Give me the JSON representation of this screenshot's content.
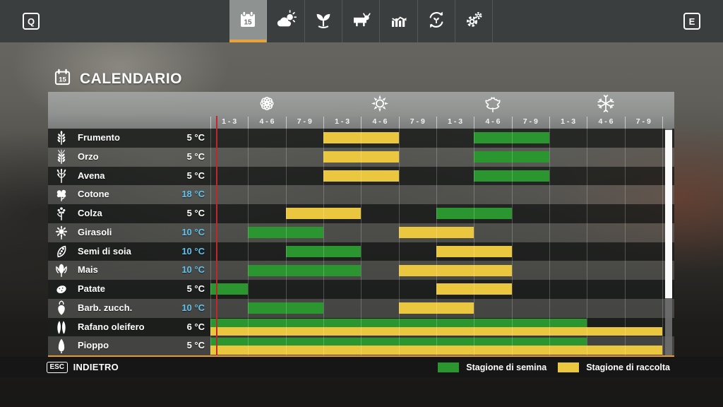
{
  "topbar": {
    "left_key": "Q",
    "right_key": "E",
    "tabs": [
      {
        "name": "calendar-tab",
        "icon": "calendar-icon",
        "active": true
      },
      {
        "name": "weather-tab",
        "icon": "weather-icon",
        "active": false
      },
      {
        "name": "crops-tab",
        "icon": "sprout-icon",
        "active": false
      },
      {
        "name": "animals-tab",
        "icon": "cow-icon",
        "active": false
      },
      {
        "name": "statistics-tab",
        "icon": "chart-icon",
        "active": false
      },
      {
        "name": "rotation-tab",
        "icon": "rotation-icon",
        "active": false
      },
      {
        "name": "settings-tab",
        "icon": "gears-icon",
        "active": false
      }
    ]
  },
  "page": {
    "title": "CALENDARIO",
    "title_icon": "calendar-outline-icon"
  },
  "calendar": {
    "seasons": [
      {
        "name": "spring",
        "icon": "flower-icon"
      },
      {
        "name": "summer",
        "icon": "sun-icon"
      },
      {
        "name": "autumn",
        "icon": "leaf-icon"
      },
      {
        "name": "winter",
        "icon": "snowflake-icon"
      }
    ],
    "period_labels": [
      "1 - 3",
      "4 - 6",
      "7 - 9",
      "1 - 3",
      "4 - 6",
      "7 - 9",
      "1 - 3",
      "4 - 6",
      "7 - 9",
      "1 - 3",
      "4 - 6",
      "7 - 9"
    ],
    "rows": [
      {
        "crop": "Frumento",
        "temp": "5 °C",
        "temp_highlight": false,
        "icon": "wheat-icon",
        "sow": [
          8,
          9
        ],
        "harvest": [
          4,
          5
        ],
        "layout": "normal"
      },
      {
        "crop": "Orzo",
        "temp": "5 °C",
        "temp_highlight": false,
        "icon": "barley-icon",
        "sow": [
          8,
          9
        ],
        "harvest": [
          4,
          5
        ],
        "layout": "normal"
      },
      {
        "crop": "Avena",
        "temp": "5 °C",
        "temp_highlight": false,
        "icon": "oat-icon",
        "sow": [
          8,
          9
        ],
        "harvest": [
          4,
          5
        ],
        "layout": "normal"
      },
      {
        "crop": "Cotone",
        "temp": "18 °C",
        "temp_highlight": true,
        "icon": "cotton-icon",
        "sow": null,
        "harvest": null,
        "layout": "normal"
      },
      {
        "crop": "Colza",
        "temp": "5 °C",
        "temp_highlight": false,
        "icon": "canola-icon",
        "sow": [
          7,
          8
        ],
        "harvest": [
          3,
          4
        ],
        "layout": "normal"
      },
      {
        "crop": "Girasoli",
        "temp": "10 °C",
        "temp_highlight": true,
        "icon": "sunflower-icon",
        "sow": [
          2,
          3
        ],
        "harvest": [
          6,
          7
        ],
        "layout": "normal"
      },
      {
        "crop": "Semi di soia",
        "temp": "10 °C",
        "temp_highlight": true,
        "icon": "soybean-icon",
        "sow": [
          3,
          4
        ],
        "harvest": [
          7,
          8
        ],
        "layout": "normal"
      },
      {
        "crop": "Mais",
        "temp": "10 °C",
        "temp_highlight": true,
        "icon": "corn-icon",
        "sow": [
          2,
          4
        ],
        "harvest": [
          6,
          8
        ],
        "layout": "normal"
      },
      {
        "crop": "Patate",
        "temp": "5 °C",
        "temp_highlight": false,
        "icon": "potato-icon",
        "sow": [
          1,
          1
        ],
        "harvest": [
          7,
          8
        ],
        "layout": "normal"
      },
      {
        "crop": "Barb. zucch.",
        "temp": "10 °C",
        "temp_highlight": true,
        "icon": "sugarbeet-icon",
        "sow": [
          2,
          3
        ],
        "harvest": [
          6,
          7
        ],
        "layout": "normal"
      },
      {
        "crop": "Rafano oleifero",
        "temp": "6 °C",
        "temp_highlight": false,
        "icon": "radish-icon",
        "sow": [
          1,
          10
        ],
        "harvest": [
          1,
          12
        ],
        "layout": "stacked"
      },
      {
        "crop": "Pioppo",
        "temp": "5 °C",
        "temp_highlight": false,
        "icon": "poplar-icon",
        "sow": [
          1,
          10
        ],
        "harvest": [
          1,
          12
        ],
        "layout": "stacked"
      }
    ],
    "legend": [
      {
        "label": "Stagione di semina",
        "color": "#2b9530"
      },
      {
        "label": "Stagione di raccolta",
        "color": "#eac73e"
      }
    ]
  },
  "footer": {
    "key": "ESC",
    "label": "INDIETRO"
  },
  "colors": {
    "sow_green": "#2b9530",
    "harvest_yellow": "#eac73e",
    "accent_orange": "#e8992e",
    "current_day_red": "#c1272d",
    "temp_blue": "#62c2ee"
  }
}
